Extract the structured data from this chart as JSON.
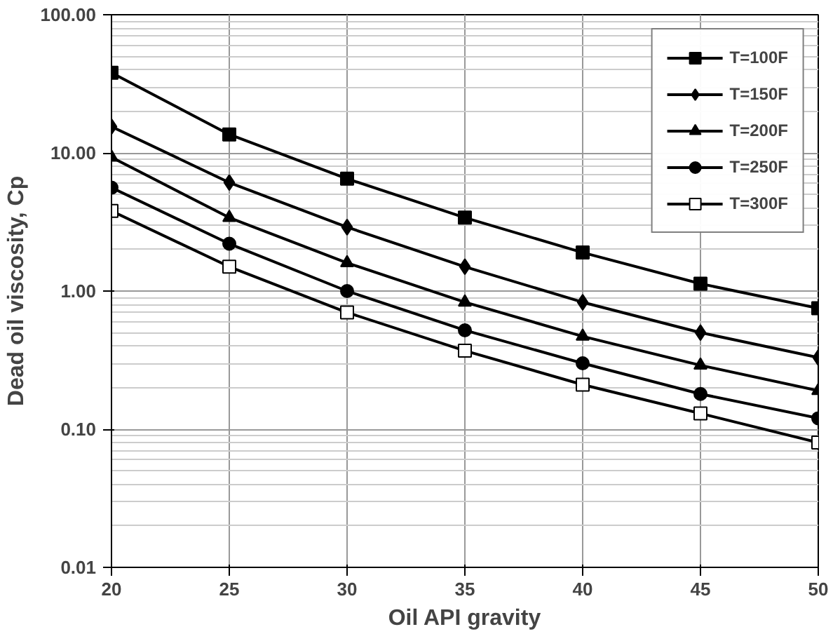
{
  "chart_data": {
    "type": "line",
    "xlabel": "Oil API gravity",
    "ylabel": "Dead oil viscosity, Cp",
    "x": [
      20,
      25,
      30,
      35,
      40,
      45,
      50
    ],
    "xlim": [
      20,
      50
    ],
    "xticks": [
      20,
      25,
      30,
      35,
      40,
      45,
      50
    ],
    "ylim": [
      0.01,
      100
    ],
    "yticks": [
      {
        "value": 0.01,
        "label": "0.01"
      },
      {
        "value": 0.1,
        "label": "0.10"
      },
      {
        "value": 1,
        "label": "1.00"
      },
      {
        "value": 10,
        "label": "10.00"
      },
      {
        "value": 100,
        "label": "100.00"
      }
    ],
    "log": "y",
    "grid": true,
    "legend": "top right",
    "line_style": "solid",
    "series": [
      {
        "name": "T=100F",
        "color": "#000000",
        "marker": "square",
        "values": [
          38,
          13.6,
          6.5,
          3.4,
          1.9,
          1.13,
          0.75
        ]
      },
      {
        "name": "T=150F",
        "color": "#000000",
        "marker": "diamond",
        "values": [
          15.5,
          6.1,
          2.9,
          1.5,
          0.83,
          0.5,
          0.33
        ]
      },
      {
        "name": "T=200F",
        "color": "#000000",
        "marker": "triangle",
        "values": [
          9.3,
          3.4,
          1.6,
          0.83,
          0.47,
          0.29,
          0.19
        ]
      },
      {
        "name": "T=250F",
        "color": "#000000",
        "marker": "circle",
        "values": [
          5.6,
          2.2,
          1.0,
          0.52,
          0.3,
          0.18,
          0.12
        ]
      },
      {
        "name": "T=300F",
        "color": "#000000",
        "marker": "square_open",
        "values": [
          3.8,
          1.5,
          0.7,
          0.37,
          0.21,
          0.13,
          0.08
        ]
      }
    ]
  }
}
